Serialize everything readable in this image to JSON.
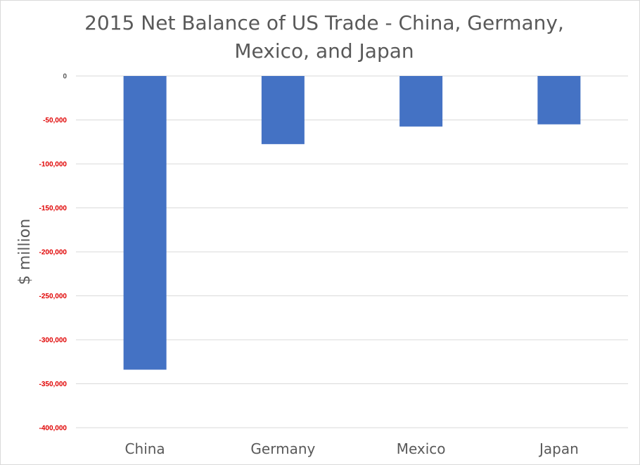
{
  "chart_data": {
    "type": "bar",
    "title": "2015 Net Balance of US Trade - China, Germany, Mexico, and Japan",
    "xlabel": "",
    "ylabel": "$ million",
    "categories": [
      "China",
      "Germany",
      "Mexico",
      "Japan"
    ],
    "values": [
      -334000,
      -77500,
      -57500,
      -55000
    ],
    "ylim": [
      -400000,
      0
    ],
    "y_ticks": [
      0,
      -50000,
      -100000,
      -150000,
      -200000,
      -250000,
      -300000,
      -350000,
      -400000
    ],
    "y_tick_labels": [
      "0",
      "-50,000",
      "-100,000",
      "-150,000",
      "-200,000",
      "-250,000",
      "-300,000",
      "-350,000",
      "-400,000"
    ],
    "grid": true,
    "legend": "none",
    "colors": {
      "bar": "#4472c4",
      "tick_label_negative": "#e00000",
      "tick_label_zero": "#595959",
      "category_label": "#595959",
      "axis_title": "#595959",
      "gridline": "#d9d9d9"
    }
  }
}
